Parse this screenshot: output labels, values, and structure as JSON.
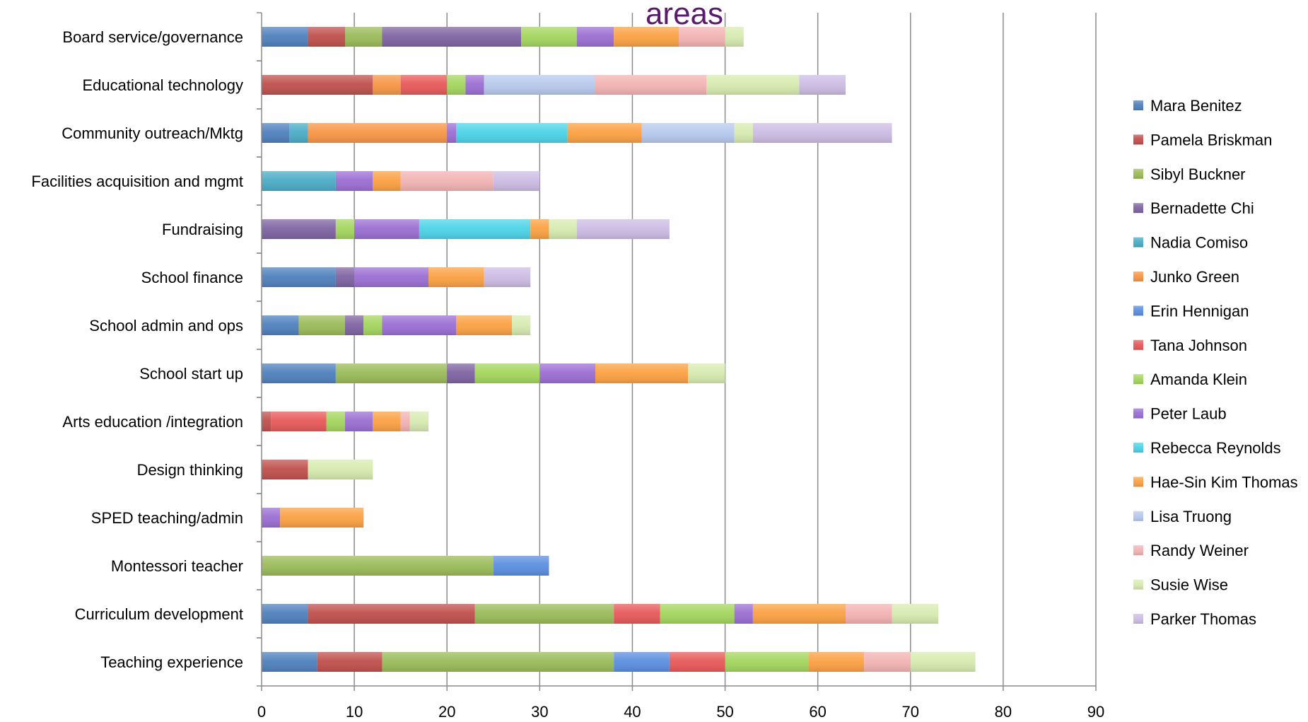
{
  "chart_data": {
    "type": "bar",
    "orientation": "horizontal",
    "stacked": true,
    "title": "areas",
    "xlabel": "",
    "ylabel": "",
    "xlim": [
      0,
      90
    ],
    "x_ticks": [
      0,
      10,
      20,
      30,
      40,
      50,
      60,
      70,
      80,
      90
    ],
    "grid": "vertical",
    "legend_position": "right",
    "categories": [
      "Board service/governance",
      "Educational technology",
      "Community outreach/Mktg",
      "Facilities acquisition and mgmt",
      "Fundraising",
      "School finance",
      "School admin and ops",
      "School start up",
      "Arts education /integration",
      "Design thinking",
      "SPED teaching/admin",
      "Montessori teacher",
      "Curriculum development",
      "Teaching experience"
    ],
    "series": [
      {
        "name": "Mara Benitez",
        "color": "#4f81bd",
        "values": [
          5,
          0,
          3,
          0,
          0,
          8,
          4,
          8,
          0,
          0,
          0,
          0,
          5,
          6
        ]
      },
      {
        "name": "Pamela Briskman",
        "color": "#c0504d",
        "values": [
          4,
          12,
          0,
          0,
          0,
          0,
          0,
          0,
          1,
          5,
          0,
          0,
          18,
          7
        ]
      },
      {
        "name": "Sibyl Buckner",
        "color": "#9bbb59",
        "values": [
          4,
          0,
          0,
          0,
          0,
          0,
          5,
          12,
          0,
          0,
          0,
          25,
          15,
          25
        ]
      },
      {
        "name": "Bernadette Chi",
        "color": "#8064a2",
        "values": [
          15,
          0,
          0,
          0,
          8,
          2,
          2,
          3,
          0,
          0,
          0,
          0,
          0,
          0
        ]
      },
      {
        "name": "Nadia Comiso",
        "color": "#4bacc6",
        "values": [
          0,
          0,
          2,
          8,
          0,
          0,
          0,
          0,
          0,
          0,
          0,
          0,
          0,
          0
        ]
      },
      {
        "name": "Junko Green",
        "color": "#f79646",
        "values": [
          0,
          3,
          15,
          0,
          0,
          0,
          0,
          0,
          0,
          0,
          0,
          0,
          0,
          0
        ]
      },
      {
        "name": "Erin Hennigan",
        "color": "#5b8fdf",
        "values": [
          0,
          0,
          0,
          0,
          0,
          0,
          0,
          0,
          0,
          0,
          0,
          6,
          0,
          6
        ]
      },
      {
        "name": "Tana Johnson",
        "color": "#e8595a",
        "values": [
          0,
          5,
          0,
          0,
          0,
          0,
          0,
          0,
          6,
          0,
          0,
          0,
          5,
          6
        ]
      },
      {
        "name": "Amanda Klein",
        "color": "#a4d65e",
        "values": [
          6,
          2,
          0,
          0,
          2,
          0,
          2,
          7,
          2,
          0,
          0,
          0,
          8,
          9
        ]
      },
      {
        "name": "Peter Laub",
        "color": "#9b6fd3",
        "values": [
          4,
          2,
          1,
          4,
          7,
          8,
          8,
          6,
          3,
          0,
          2,
          0,
          2,
          0
        ]
      },
      {
        "name": "Rebecca Reynolds",
        "color": "#4dd3e8",
        "values": [
          0,
          0,
          12,
          0,
          12,
          0,
          0,
          0,
          0,
          0,
          0,
          0,
          0,
          0
        ]
      },
      {
        "name": "Hae-Sin Kim Thomas",
        "color": "#fba143",
        "values": [
          7,
          0,
          8,
          3,
          2,
          6,
          6,
          10,
          3,
          0,
          9,
          0,
          10,
          6
        ]
      },
      {
        "name": "Lisa Truong",
        "color": "#b7c9ee",
        "values": [
          0,
          12,
          10,
          0,
          0,
          0,
          0,
          0,
          0,
          0,
          0,
          0,
          0,
          0
        ]
      },
      {
        "name": "Randy Weiner",
        "color": "#f3b3b3",
        "values": [
          5,
          12,
          0,
          10,
          0,
          0,
          0,
          0,
          1,
          0,
          0,
          0,
          5,
          5
        ]
      },
      {
        "name": "Susie Wise",
        "color": "#d7ebb0",
        "values": [
          2,
          10,
          2,
          0,
          3,
          0,
          2,
          4,
          2,
          7,
          0,
          0,
          5,
          7
        ]
      },
      {
        "name": "Parker Thomas",
        "color": "#cdbce4",
        "values": [
          0,
          5,
          15,
          5,
          10,
          5,
          0,
          0,
          0,
          0,
          0,
          0,
          0,
          0
        ]
      }
    ]
  }
}
